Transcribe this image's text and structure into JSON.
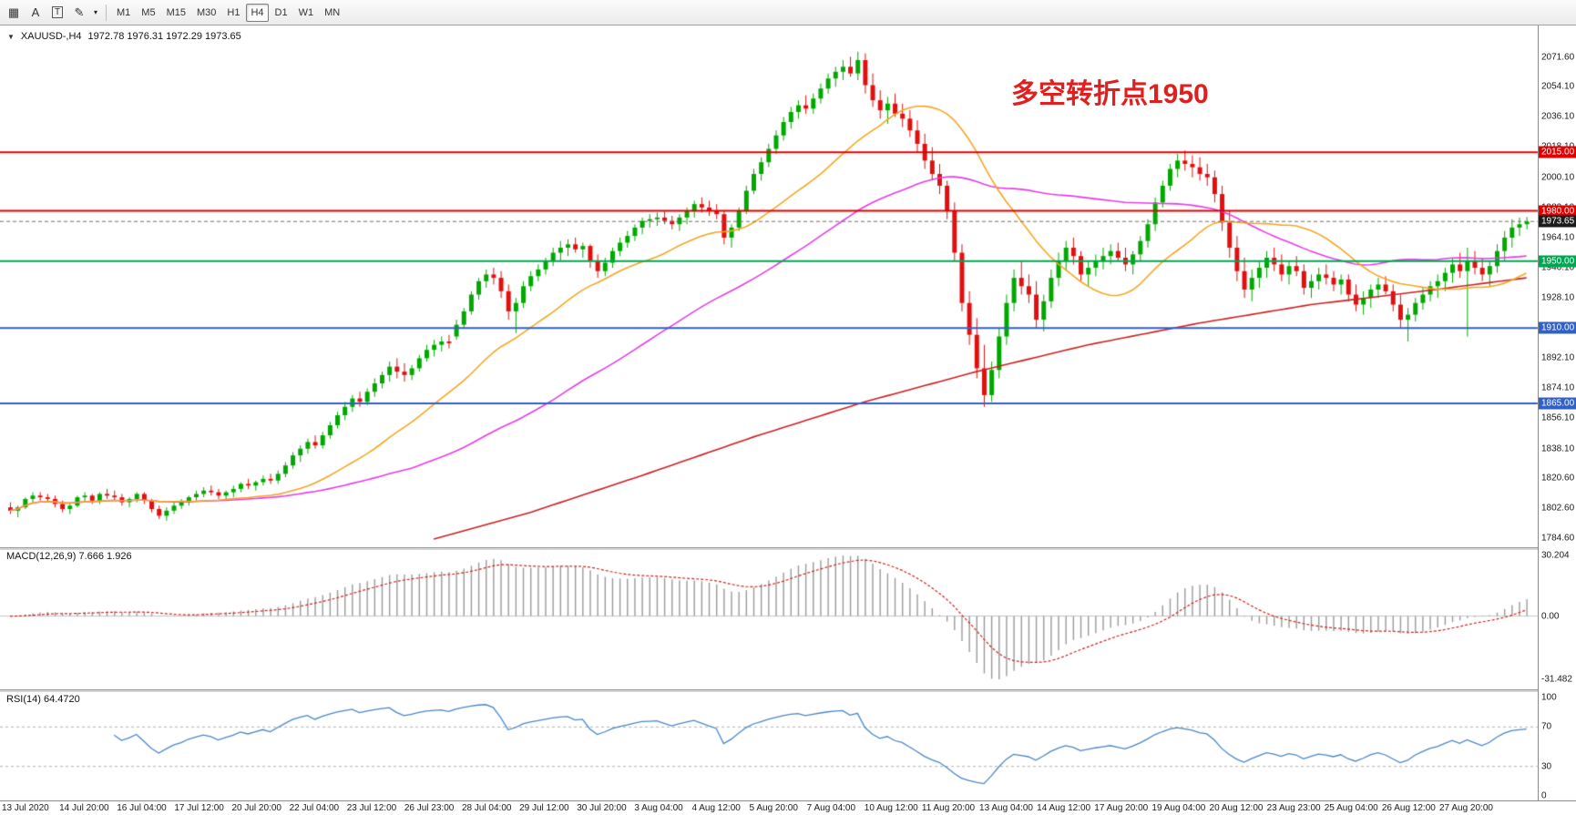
{
  "toolbar": {
    "tools": [
      {
        "name": "template-grid",
        "glyph": "▦",
        "boxed": false
      },
      {
        "name": "text-a",
        "glyph": "A",
        "boxed": false
      },
      {
        "name": "text-label",
        "glyph": "T",
        "boxed": true
      },
      {
        "name": "pencil-draw",
        "glyph": "✎",
        "boxed": false
      },
      {
        "name": "pencil-dropdown",
        "glyph": "▾",
        "boxed": false
      }
    ],
    "timeframes": [
      "M1",
      "M5",
      "M15",
      "M30",
      "H1",
      "H4",
      "D1",
      "W1",
      "MN"
    ],
    "active_timeframe": "H4"
  },
  "chart": {
    "symbol_label": "XAUUSD-,H4",
    "ohlc_text": "1972.78 1976.31 1972.29 1973.65",
    "annotation": {
      "text": "多空转折点1950",
      "color": "#e01f1f"
    },
    "price_ticks": [
      2071.6,
      2054.1,
      2036.1,
      2018.1,
      2000.1,
      1982.1,
      1964.1,
      1946.1,
      1928.1,
      1910.1,
      1892.1,
      1874.1,
      1856.1,
      1838.1,
      1820.6,
      1802.6,
      1784.6
    ],
    "levels": [
      {
        "price": 2015.0,
        "label": "2015.00",
        "color": "#e00000"
      },
      {
        "price": 1980.0,
        "label": "1980.00",
        "color": "#e00000"
      },
      {
        "price": 1950.0,
        "label": "1950.00",
        "color": "#00a651"
      },
      {
        "price": 1910.0,
        "label": "1910.00",
        "color": "#3360c4"
      },
      {
        "price": 1865.0,
        "label": "1865.00",
        "color": "#3360c4"
      }
    ],
    "current_price": {
      "value": 1973.65,
      "label": "1973.65",
      "badge_bg": "#1c1c1c",
      "line_color": "#6a6a6a"
    }
  },
  "chart_data": {
    "type": "candlestick",
    "symbol": "XAUUSD",
    "timeframe": "H4",
    "up_color": "#00a800",
    "down_color": "#e01010",
    "price_range": [
      1784.6,
      2071.6
    ],
    "ma_fast": {
      "period": 22,
      "color": "#f5a623"
    },
    "ma_mid": {
      "period": 55,
      "color": "#e53ce5"
    },
    "ma_slow": {
      "color": "#cc2020",
      "anchors": [
        [
          57,
          1784
        ],
        [
          70,
          1800
        ],
        [
          85,
          1822
        ],
        [
          100,
          1845
        ],
        [
          115,
          1866
        ],
        [
          130,
          1884
        ],
        [
          145,
          1900
        ],
        [
          160,
          1913
        ],
        [
          175,
          1924
        ],
        [
          190,
          1932
        ],
        [
          204,
          1940
        ]
      ]
    },
    "candles": [
      [
        1803,
        1806,
        1799,
        1801
      ],
      [
        1801,
        1804,
        1797,
        1803
      ],
      [
        1803,
        1809,
        1802,
        1808
      ],
      [
        1808,
        1812,
        1806,
        1810
      ],
      [
        1810,
        1812,
        1807,
        1809
      ],
      [
        1809,
        1811,
        1806,
        1808
      ],
      [
        1808,
        1810,
        1803,
        1805
      ],
      [
        1805,
        1807,
        1800,
        1802
      ],
      [
        1802,
        1806,
        1799,
        1804
      ],
      [
        1804,
        1810,
        1803,
        1809
      ],
      [
        1809,
        1812,
        1806,
        1810
      ],
      [
        1810,
        1811,
        1805,
        1807
      ],
      [
        1807,
        1812,
        1805,
        1811
      ],
      [
        1811,
        1814,
        1808,
        1810
      ],
      [
        1810,
        1813,
        1807,
        1809
      ],
      [
        1809,
        1811,
        1804,
        1806
      ],
      [
        1806,
        1809,
        1803,
        1808
      ],
      [
        1808,
        1812,
        1806,
        1811
      ],
      [
        1811,
        1812,
        1805,
        1807
      ],
      [
        1807,
        1808,
        1800,
        1802
      ],
      [
        1802,
        1804,
        1796,
        1798
      ],
      [
        1798,
        1803,
        1795,
        1801
      ],
      [
        1801,
        1806,
        1799,
        1804
      ],
      [
        1804,
        1808,
        1802,
        1806
      ],
      [
        1806,
        1810,
        1804,
        1809
      ],
      [
        1809,
        1813,
        1807,
        1811
      ],
      [
        1811,
        1815,
        1809,
        1813
      ],
      [
        1813,
        1816,
        1810,
        1812
      ],
      [
        1812,
        1814,
        1808,
        1810
      ],
      [
        1810,
        1813,
        1808,
        1812
      ],
      [
        1812,
        1816,
        1809,
        1814
      ],
      [
        1814,
        1818,
        1812,
        1817
      ],
      [
        1817,
        1820,
        1814,
        1816
      ],
      [
        1816,
        1819,
        1813,
        1818
      ],
      [
        1818,
        1822,
        1816,
        1820
      ],
      [
        1820,
        1823,
        1817,
        1819
      ],
      [
        1819,
        1825,
        1817,
        1823
      ],
      [
        1823,
        1830,
        1821,
        1828
      ],
      [
        1828,
        1836,
        1826,
        1834
      ],
      [
        1834,
        1840,
        1830,
        1838
      ],
      [
        1838,
        1844,
        1835,
        1842
      ],
      [
        1842,
        1846,
        1838,
        1840
      ],
      [
        1840,
        1848,
        1838,
        1846
      ],
      [
        1846,
        1854,
        1844,
        1852
      ],
      [
        1852,
        1860,
        1850,
        1858
      ],
      [
        1858,
        1866,
        1855,
        1863
      ],
      [
        1863,
        1870,
        1860,
        1868
      ],
      [
        1868,
        1872,
        1863,
        1866
      ],
      [
        1866,
        1874,
        1864,
        1872
      ],
      [
        1872,
        1880,
        1869,
        1877
      ],
      [
        1877,
        1884,
        1874,
        1882
      ],
      [
        1882,
        1890,
        1878,
        1887
      ],
      [
        1887,
        1892,
        1880,
        1884
      ],
      [
        1884,
        1889,
        1878,
        1882
      ],
      [
        1882,
        1888,
        1879,
        1886
      ],
      [
        1886,
        1894,
        1884,
        1892
      ],
      [
        1892,
        1900,
        1890,
        1897
      ],
      [
        1897,
        1903,
        1893,
        1900
      ],
      [
        1900,
        1905,
        1896,
        1902
      ],
      [
        1902,
        1906,
        1898,
        1901
      ],
      [
        1905,
        1915,
        1903,
        1912
      ],
      [
        1912,
        1922,
        1910,
        1920
      ],
      [
        1920,
        1932,
        1918,
        1930
      ],
      [
        1930,
        1940,
        1927,
        1938
      ],
      [
        1938,
        1945,
        1934,
        1942
      ],
      [
        1942,
        1946,
        1936,
        1940
      ],
      [
        1940,
        1944,
        1928,
        1932
      ],
      [
        1932,
        1936,
        1915,
        1920
      ],
      [
        1920,
        1928,
        1907,
        1925
      ],
      [
        1925,
        1938,
        1922,
        1935
      ],
      [
        1935,
        1944,
        1932,
        1941
      ],
      [
        1941,
        1948,
        1938,
        1945
      ],
      [
        1945,
        1952,
        1942,
        1950
      ],
      [
        1950,
        1958,
        1947,
        1955
      ],
      [
        1955,
        1962,
        1950,
        1958
      ],
      [
        1958,
        1963,
        1953,
        1960
      ],
      [
        1960,
        1964,
        1955,
        1957
      ],
      [
        1957,
        1961,
        1952,
        1959
      ],
      [
        1959,
        1960,
        1946,
        1950
      ],
      [
        1950,
        1954,
        1940,
        1944
      ],
      [
        1944,
        1952,
        1941,
        1949
      ],
      [
        1949,
        1958,
        1946,
        1956
      ],
      [
        1956,
        1964,
        1953,
        1961
      ],
      [
        1961,
        1968,
        1958,
        1965
      ],
      [
        1965,
        1972,
        1962,
        1970
      ],
      [
        1970,
        1976,
        1966,
        1974
      ],
      [
        1974,
        1978,
        1970,
        1975
      ],
      [
        1975,
        1979,
        1971,
        1976
      ],
      [
        1976,
        1980,
        1972,
        1974
      ],
      [
        1974,
        1977,
        1969,
        1972
      ],
      [
        1972,
        1978,
        1968,
        1976
      ],
      [
        1976,
        1982,
        1972,
        1980
      ],
      [
        1980,
        1986,
        1976,
        1984
      ],
      [
        1984,
        1988,
        1979,
        1982
      ],
      [
        1982,
        1986,
        1977,
        1980
      ],
      [
        1980,
        1984,
        1975,
        1978
      ],
      [
        1978,
        1980,
        1960,
        1964
      ],
      [
        1964,
        1972,
        1958,
        1970
      ],
      [
        1970,
        1982,
        1968,
        1980
      ],
      [
        1980,
        1995,
        1978,
        1992
      ],
      [
        1992,
        2005,
        1990,
        2002
      ],
      [
        2002,
        2012,
        1998,
        2009
      ],
      [
        2009,
        2020,
        2006,
        2017
      ],
      [
        2017,
        2028,
        2014,
        2025
      ],
      [
        2025,
        2036,
        2022,
        2033
      ],
      [
        2033,
        2042,
        2029,
        2039
      ],
      [
        2039,
        2046,
        2035,
        2043
      ],
      [
        2043,
        2049,
        2038,
        2041
      ],
      [
        2041,
        2050,
        2038,
        2047
      ],
      [
        2047,
        2056,
        2044,
        2053
      ],
      [
        2053,
        2062,
        2050,
        2059
      ],
      [
        2059,
        2066,
        2054,
        2063
      ],
      [
        2063,
        2070,
        2058,
        2066
      ],
      [
        2066,
        2072,
        2060,
        2062
      ],
      [
        2062,
        2075,
        2058,
        2070
      ],
      [
        2070,
        2074,
        2050,
        2055
      ],
      [
        2055,
        2062,
        2042,
        2046
      ],
      [
        2046,
        2052,
        2035,
        2040
      ],
      [
        2040,
        2048,
        2032,
        2044
      ],
      [
        2044,
        2050,
        2036,
        2038
      ],
      [
        2038,
        2044,
        2030,
        2035
      ],
      [
        2035,
        2040,
        2024,
        2028
      ],
      [
        2028,
        2034,
        2015,
        2020
      ],
      [
        2020,
        2026,
        2005,
        2010
      ],
      [
        2010,
        2018,
        1998,
        2002
      ],
      [
        2002,
        2008,
        1990,
        1995
      ],
      [
        1995,
        1998,
        1975,
        1980
      ],
      [
        1980,
        1985,
        1950,
        1955
      ],
      [
        1955,
        1960,
        1920,
        1925
      ],
      [
        1925,
        1932,
        1900,
        1906
      ],
      [
        1906,
        1916,
        1880,
        1886
      ],
      [
        1886,
        1900,
        1863,
        1870
      ],
      [
        1870,
        1890,
        1866,
        1885
      ],
      [
        1885,
        1910,
        1880,
        1905
      ],
      [
        1905,
        1930,
        1900,
        1925
      ],
      [
        1925,
        1945,
        1920,
        1940
      ],
      [
        1940,
        1950,
        1930,
        1935
      ],
      [
        1935,
        1942,
        1925,
        1930
      ],
      [
        1930,
        1938,
        1910,
        1915
      ],
      [
        1915,
        1930,
        1908,
        1926
      ],
      [
        1926,
        1945,
        1922,
        1940
      ],
      [
        1940,
        1955,
        1935,
        1950
      ],
      [
        1950,
        1962,
        1944,
        1958
      ],
      [
        1958,
        1964,
        1948,
        1953
      ],
      [
        1953,
        1956,
        1938,
        1942
      ],
      [
        1942,
        1950,
        1935,
        1946
      ],
      [
        1946,
        1954,
        1941,
        1950
      ],
      [
        1950,
        1958,
        1945,
        1953
      ],
      [
        1953,
        1960,
        1948,
        1956
      ],
      [
        1956,
        1961,
        1950,
        1952
      ],
      [
        1952,
        1958,
        1944,
        1948
      ],
      [
        1948,
        1956,
        1942,
        1954
      ],
      [
        1954,
        1965,
        1950,
        1962
      ],
      [
        1962,
        1975,
        1958,
        1972
      ],
      [
        1972,
        1988,
        1968,
        1985
      ],
      [
        1985,
        1998,
        1982,
        1995
      ],
      [
        1995,
        2008,
        1992,
        2005
      ],
      [
        2005,
        2014,
        2000,
        2010
      ],
      [
        2010,
        2016,
        2004,
        2008
      ],
      [
        2008,
        2013,
        2000,
        2006
      ],
      [
        2006,
        2012,
        1998,
        2002
      ],
      [
        2002,
        2008,
        1995,
        2000
      ],
      [
        2000,
        2004,
        1985,
        1990
      ],
      [
        1990,
        1995,
        1968,
        1973
      ],
      [
        1973,
        1980,
        1952,
        1958
      ],
      [
        1958,
        1965,
        1938,
        1944
      ],
      [
        1944,
        1952,
        1928,
        1933
      ],
      [
        1933,
        1945,
        1926,
        1940
      ],
      [
        1940,
        1950,
        1934,
        1946
      ],
      [
        1946,
        1956,
        1940,
        1952
      ],
      [
        1952,
        1958,
        1944,
        1948
      ],
      [
        1948,
        1954,
        1938,
        1942
      ],
      [
        1942,
        1950,
        1936,
        1947
      ],
      [
        1947,
        1953,
        1941,
        1944
      ],
      [
        1944,
        1948,
        1930,
        1934
      ],
      [
        1934,
        1942,
        1928,
        1938
      ],
      [
        1938,
        1946,
        1933,
        1942
      ],
      [
        1942,
        1948,
        1936,
        1940
      ],
      [
        1940,
        1944,
        1932,
        1936
      ],
      [
        1936,
        1942,
        1930,
        1939
      ],
      [
        1939,
        1942,
        1926,
        1930
      ],
      [
        1930,
        1936,
        1920,
        1924
      ],
      [
        1924,
        1932,
        1918,
        1928
      ],
      [
        1928,
        1936,
        1922,
        1933
      ],
      [
        1933,
        1940,
        1928,
        1936
      ],
      [
        1936,
        1941,
        1930,
        1932
      ],
      [
        1932,
        1936,
        1920,
        1924
      ],
      [
        1924,
        1930,
        1910,
        1915
      ],
      [
        1915,
        1922,
        1902,
        1918
      ],
      [
        1918,
        1928,
        1914,
        1925
      ],
      [
        1925,
        1934,
        1921,
        1930
      ],
      [
        1930,
        1938,
        1926,
        1935
      ],
      [
        1935,
        1942,
        1928,
        1938
      ],
      [
        1938,
        1946,
        1932,
        1943
      ],
      [
        1943,
        1952,
        1937,
        1948
      ],
      [
        1948,
        1955,
        1940,
        1944
      ],
      [
        1944,
        1958,
        1905,
        1950
      ],
      [
        1950,
        1956,
        1942,
        1946
      ],
      [
        1946,
        1952,
        1938,
        1942
      ],
      [
        1942,
        1950,
        1935,
        1947
      ],
      [
        1947,
        1960,
        1943,
        1956
      ],
      [
        1956,
        1968,
        1950,
        1964
      ],
      [
        1964,
        1975,
        1958,
        1970
      ],
      [
        1970,
        1976,
        1965,
        1972
      ],
      [
        1972,
        1976.31,
        1969,
        1973.65
      ]
    ]
  },
  "macd": {
    "label": "MACD(12,26,9) 7.666 1.926",
    "fast": 12,
    "slow": 26,
    "signal": 9,
    "value": "7.666",
    "signal_value": "1.926",
    "vmax": 30.204,
    "vmin": -31.482,
    "histogram_color": "#9a9a9a",
    "signal_color": "#cc2222",
    "axis": [
      {
        "v": 30.204,
        "label": "30.204"
      },
      {
        "v": 0,
        "label": "0.00"
      },
      {
        "v": -31.482,
        "label": "-31.482"
      }
    ]
  },
  "rsi": {
    "label": "RSI(14) 64.4720",
    "period": 14,
    "value": "64.4720",
    "line_color": "#4a86c8",
    "levels": [
      70,
      30
    ],
    "axis": [
      {
        "v": 100,
        "label": "100"
      },
      {
        "v": 70,
        "label": "70"
      },
      {
        "v": 30,
        "label": "30"
      },
      {
        "v": 0,
        "label": "0"
      }
    ]
  },
  "time_axis": {
    "labels": [
      "13 Jul 2020",
      "14 Jul 20:00",
      "16 Jul 04:00",
      "17 Jul 12:00",
      "20 Jul 20:00",
      "22 Jul 04:00",
      "23 Jul 12:00",
      "26 Jul 23:00",
      "28 Jul 04:00",
      "29 Jul 12:00",
      "30 Jul 20:00",
      "3 Aug 04:00",
      "4 Aug 12:00",
      "5 Aug 20:00",
      "7 Aug 04:00",
      "10 Aug 12:00",
      "11 Aug 20:00",
      "13 Aug 04:00",
      "14 Aug 12:00",
      "17 Aug 20:00",
      "19 Aug 04:00",
      "20 Aug 12:00",
      "23 Aug 23:00",
      "25 Aug 04:00",
      "26 Aug 12:00",
      "27 Aug 20:00"
    ]
  }
}
